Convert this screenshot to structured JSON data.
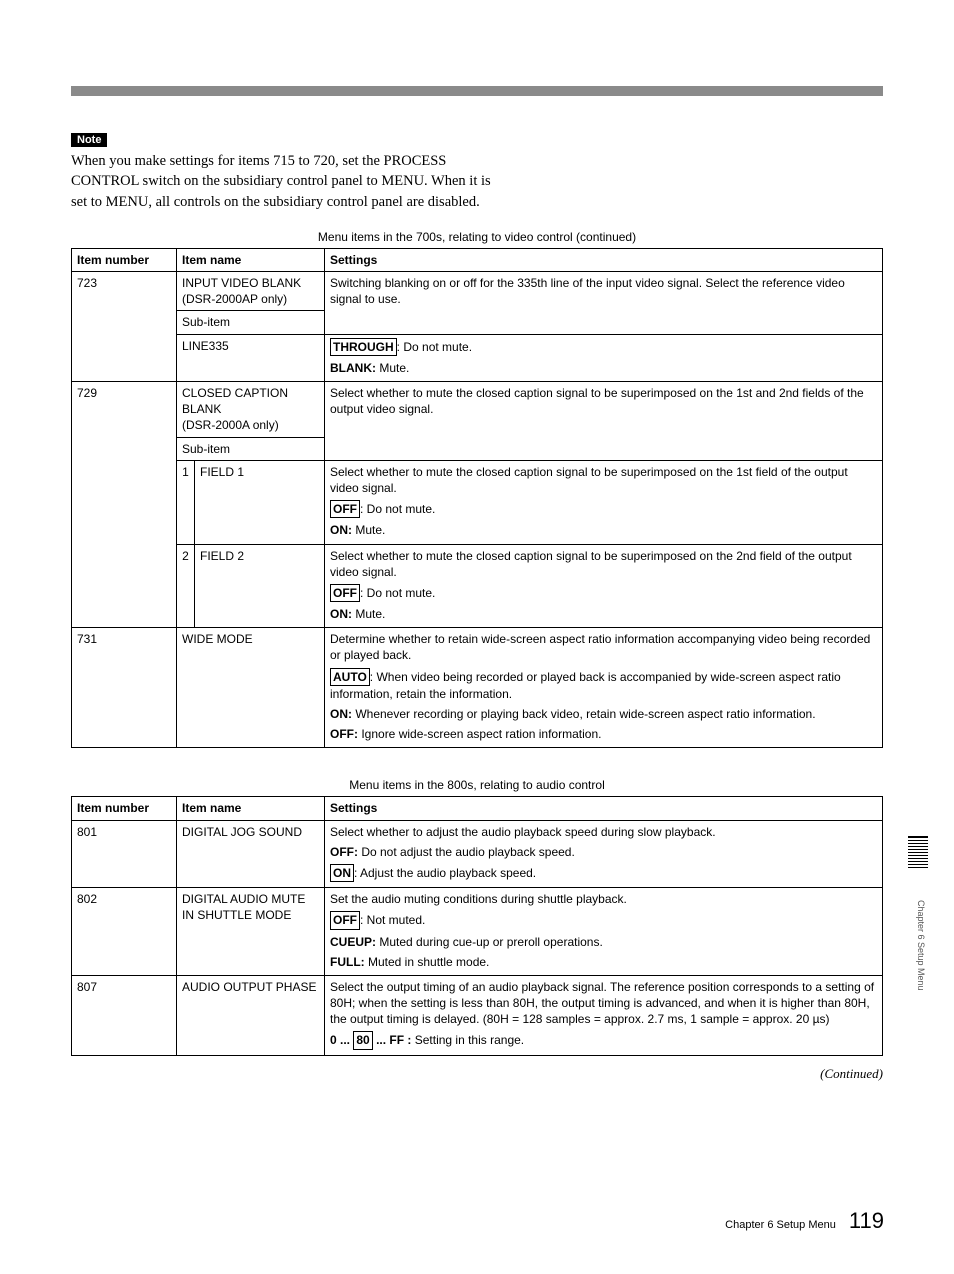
{
  "note": {
    "label": "Note",
    "text": "When you make settings for items 715 to 720, set the PROCESS CONTROL switch on the subsidiary control panel to MENU. When it is set to MENU, all controls on the subsidiary control panel are disabled."
  },
  "table700": {
    "caption": "Menu items in the 700s, relating to video control (continued)",
    "headers": {
      "num": "Item number",
      "name": "Item name",
      "settings": "Settings"
    },
    "r723": {
      "num": "723",
      "name": "INPUT VIDEO BLANK\n(DSR-2000AP only)",
      "desc": "Switching blanking on or off for the 335th line of the input video signal. Select the reference video signal to use.",
      "sub_label": "Sub-item",
      "line335_name": "LINE335",
      "line335_opt1_key": "THROUGH",
      "line335_opt1_val": ": Do not mute.",
      "line335_opt2_key": "BLANK:",
      "line335_opt2_val": " Mute."
    },
    "r729": {
      "num": "729",
      "name": "CLOSED CAPTION BLANK\n(DSR-2000A only)",
      "desc": "Select whether to mute the closed caption signal to be superimposed on the 1st and 2nd fields of the output video signal.",
      "sub_label": "Sub-item",
      "f1": {
        "idx": "1",
        "name": "FIELD 1",
        "desc": "Select whether to mute the closed caption signal to be superimposed on the 1st field of the output video signal.",
        "opt1_key": "OFF",
        "opt1_val": ": Do not mute.",
        "opt2_key": "ON:",
        "opt2_val": " Mute."
      },
      "f2": {
        "idx": "2",
        "name": "FIELD 2",
        "desc": "Select whether to mute the closed caption signal to be superimposed on the 2nd field of the output video signal.",
        "opt1_key": "OFF",
        "opt1_val": ": Do not mute.",
        "opt2_key": "ON:",
        "opt2_val": " Mute."
      }
    },
    "r731": {
      "num": "731",
      "name": "WIDE MODE",
      "desc": "Determine whether to retain wide-screen aspect ratio information accompanying video being recorded or played back.",
      "opt1_key": "AUTO",
      "opt1_val": ": When video being recorded or played back is accompanied by wide-screen aspect ratio information, retain the information.",
      "opt2_key": "ON:",
      "opt2_val": " Whenever recording or playing back video, retain wide-screen aspect ratio information.",
      "opt3_key": "OFF:",
      "opt3_val": " Ignore wide-screen aspect ration information."
    }
  },
  "table800": {
    "caption": "Menu items in the 800s, relating to audio control",
    "headers": {
      "num": "Item number",
      "name": "Item name",
      "settings": "Settings"
    },
    "r801": {
      "num": "801",
      "name": "DIGITAL JOG SOUND",
      "desc": "Select whether to adjust the audio playback speed during slow playback.",
      "opt1_key": "OFF:",
      "opt1_val": " Do not adjust the audio playback speed.",
      "opt2_key": "ON",
      "opt2_val": ": Adjust the audio playback speed."
    },
    "r802": {
      "num": "802",
      "name": "DIGITAL AUDIO MUTE IN SHUTTLE MODE",
      "desc": "Set the audio muting conditions during shuttle playback.",
      "opt1_key": "OFF",
      "opt1_val": ": Not muted.",
      "opt2_key": "CUEUP:",
      "opt2_val": " Muted during cue-up or preroll operations.",
      "opt3_key": "FULL:",
      "opt3_val": " Muted in shuttle mode."
    },
    "r807": {
      "num": "807",
      "name": "AUDIO OUTPUT PHASE",
      "desc": "Select the output timing of an audio playback signal. The reference position corresponds to a setting of 80H; when the setting is less than 80H, the output timing is advanced, and when it is higher than 80H, the output timing is delayed. (80H = 128 samples = approx. 2.7 ms, 1 sample = approx. 20 µs)",
      "range_pre": "0 ...",
      "range_box": "80",
      "range_post": "... FF :",
      "range_val": " Setting in this range."
    }
  },
  "continued": "(Continued)",
  "side": {
    "barcode_lines": 11,
    "text": "Chapter 6   Setup Menu"
  },
  "footer": {
    "chapter": "Chapter 6  Setup Menu",
    "page": "119"
  },
  "colors": {
    "top_bar": "#8a8a8a",
    "text": "#000000",
    "background": "#ffffff"
  }
}
